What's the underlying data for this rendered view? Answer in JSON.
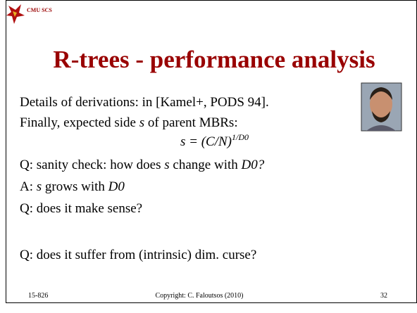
{
  "header": {
    "logo_text": "CMU SCS"
  },
  "title": "R-trees - performance analysis",
  "body": [
    [
      "Details of derivations: in [Kamel+, PODS 94]."
    ],
    [
      "Finally, expected side ",
      "s",
      " of parent MBRs:"
    ],
    [
      "s = (C/N)",
      "1/D0"
    ],
    [
      "Q: sanity check: how does ",
      "s",
      " change with ",
      "D0?"
    ],
    [
      "A: ",
      "s",
      " grows with ",
      "D0"
    ],
    [
      "Q: does it make sense?"
    ],
    [
      "Q: does it suffer from (intrinsic) dim. curse?"
    ]
  ],
  "footer": {
    "course": "15-826",
    "copyright": "Copyright: C. Faloutsos (2010)",
    "page": "32"
  }
}
